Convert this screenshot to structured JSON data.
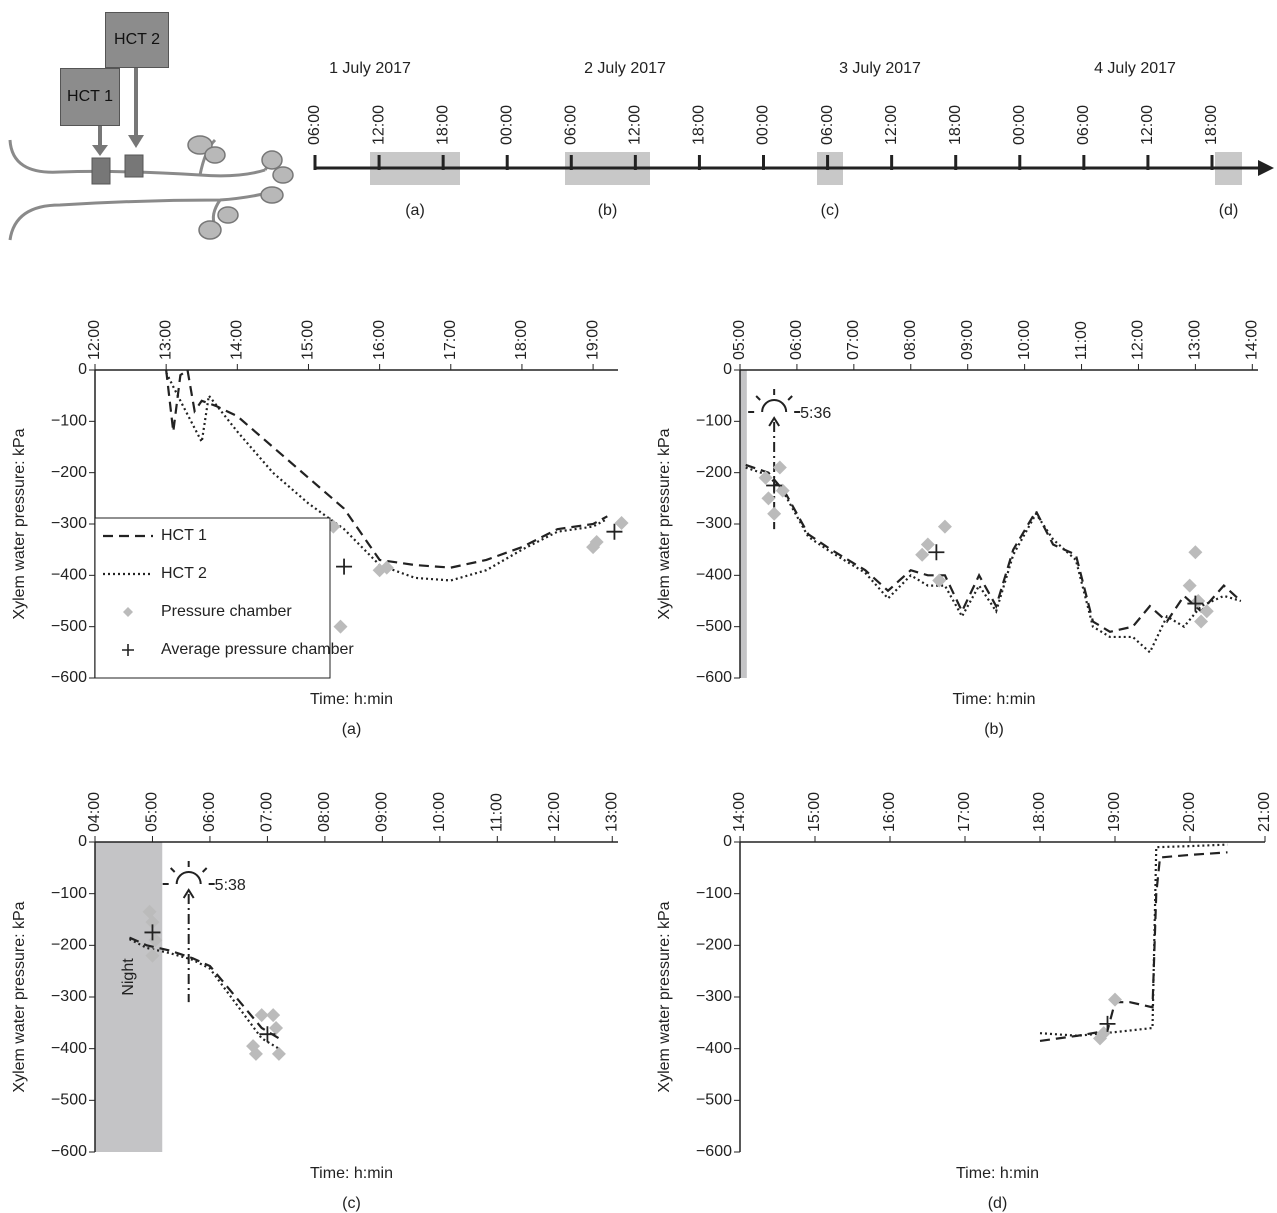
{
  "header": {
    "hct_labels": [
      "HCT 1",
      "HCT 2"
    ]
  },
  "timeline": {
    "dates": [
      "1 July 2017",
      "2 July 2017",
      "3 July 2017",
      "4 July 2017"
    ],
    "ticks": [
      "06:00",
      "12:00",
      "18:00",
      "00:00",
      "06:00",
      "12:00",
      "18:00",
      "00:00",
      "06:00",
      "12:00",
      "18:00",
      "00:00",
      "06:00",
      "12:00",
      "18:00"
    ],
    "windows": [
      "(a)",
      "(b)",
      "(c)",
      "(d)"
    ]
  },
  "chart_data": [
    {
      "type": "line",
      "caption": "(a)",
      "x_label": "Time: h:min",
      "y_label": "Xylem water pressure: kPa",
      "legend": "lower left",
      "xlim": [
        12,
        19.35
      ],
      "xticks": [
        {
          "value": 12,
          "label": "12:00"
        },
        {
          "value": 13,
          "label": "13:00"
        },
        {
          "value": 14,
          "label": "14:00"
        },
        {
          "value": 15,
          "label": "15:00"
        },
        {
          "value": 16,
          "label": "16:00"
        },
        {
          "value": 17,
          "label": "17:00"
        },
        {
          "value": 18,
          "label": "18:00"
        },
        {
          "value": 19,
          "label": "19:00"
        }
      ],
      "ylim": [
        -600,
        0
      ],
      "yticks": [
        0,
        {
          "value": -100,
          "label": "−100"
        },
        {
          "value": -200,
          "label": "−200"
        },
        {
          "value": -300,
          "label": "−300"
        },
        {
          "value": -400,
          "label": "−400"
        },
        {
          "value": -500,
          "label": "−500"
        },
        {
          "value": -600,
          "label": "−600"
        }
      ],
      "series": [
        {
          "name": "HCT 1",
          "style": "dashed",
          "color": "#222222",
          "x": [
            13.0,
            13.1,
            13.2,
            13.3,
            13.4,
            13.5,
            13.7,
            14,
            14.5,
            15,
            15.5,
            15.8,
            16,
            16.5,
            17,
            17.5,
            18,
            18.5,
            19,
            19.2
          ],
          "values": [
            0,
            -120,
            -10,
            0,
            -80,
            -60,
            -70,
            -90,
            -150,
            -210,
            -270,
            -330,
            -370,
            -380,
            -385,
            -370,
            -345,
            -310,
            -300,
            -285
          ]
        },
        {
          "name": "HCT 2",
          "style": "dotted",
          "color": "#222222",
          "x": [
            13.0,
            13.2,
            13.5,
            13.6,
            14,
            14.5,
            15,
            15.5,
            16,
            16.5,
            17,
            17.5,
            18,
            18.5,
            19,
            19.2
          ],
          "values": [
            -5,
            -60,
            -140,
            -50,
            -120,
            -200,
            -260,
            -310,
            -380,
            -405,
            -410,
            -390,
            -350,
            -315,
            -305,
            -290
          ]
        },
        {
          "name": "Pressure chamber",
          "style": "diamond",
          "color": "#bbbbbb",
          "x": [
            15.05,
            15.1,
            15.35,
            15.45,
            16.0,
            16.1,
            19.0,
            19.05,
            19.4
          ],
          "values": [
            -335,
            -378,
            -305,
            -500,
            -390,
            -385,
            -345,
            -335,
            -298
          ]
        },
        {
          "name": "Average pressure chamber",
          "style": "plus",
          "color": "#222222",
          "x": [
            15.5,
            19.3
          ],
          "values": [
            -383,
            -315
          ]
        }
      ]
    },
    {
      "type": "line",
      "caption": "(b)",
      "x_label": "Time: h:min",
      "y_label": "Xylem water pressure: kPa",
      "shaded": [
        5,
        5.12
      ],
      "sunrise_label": "5:36",
      "sunrise_x": 5.6,
      "xlim": [
        5,
        14.1
      ],
      "xticks": [
        {
          "value": 5,
          "label": "05:00"
        },
        {
          "value": 6,
          "label": "06:00"
        },
        {
          "value": 7,
          "label": "07:00"
        },
        {
          "value": 8,
          "label": "08:00"
        },
        {
          "value": 9,
          "label": "09:00"
        },
        {
          "value": 10,
          "label": "10:00"
        },
        {
          "value": 11,
          "label": "11:00"
        },
        {
          "value": 12,
          "label": "12:00"
        },
        {
          "value": 13,
          "label": "13:00"
        },
        {
          "value": 14,
          "label": "14:00"
        }
      ],
      "ylim": [
        -600,
        0
      ],
      "yticks": [
        0,
        {
          "value": -100,
          "label": "−100"
        },
        {
          "value": -200,
          "label": "−200"
        },
        {
          "value": -300,
          "label": "−300"
        },
        {
          "value": -400,
          "label": "−400"
        },
        {
          "value": -500,
          "label": "−500"
        },
        {
          "value": -600,
          "label": "−600"
        }
      ],
      "series": [
        {
          "name": "HCT 1",
          "style": "dashed",
          "color": "#222222",
          "x": [
            5.1,
            5.5,
            5.8,
            6.2,
            6.6,
            7.2,
            7.6,
            8.0,
            8.3,
            8.6,
            8.9,
            9.2,
            9.5,
            9.8,
            10.2,
            10.5,
            10.9,
            11.2,
            11.5,
            11.9,
            12.2,
            12.5,
            12.8,
            13.1,
            13.5,
            13.8
          ],
          "values": [
            -185,
            -200,
            -240,
            -320,
            -350,
            -390,
            -430,
            -390,
            -400,
            -400,
            -470,
            -400,
            -460,
            -350,
            -275,
            -340,
            -360,
            -490,
            -510,
            -500,
            -460,
            -490,
            -440,
            -470,
            -420,
            -450
          ]
        },
        {
          "name": "HCT 2",
          "style": "dotted",
          "color": "#222222",
          "x": [
            5.1,
            5.5,
            5.8,
            6.2,
            6.6,
            7.2,
            7.6,
            8.0,
            8.3,
            8.6,
            8.9,
            9.2,
            9.5,
            9.8,
            10.2,
            10.5,
            10.9,
            11.2,
            11.5,
            11.9,
            12.2,
            12.5,
            12.8,
            13.1,
            13.5,
            13.8
          ],
          "values": [
            -190,
            -205,
            -245,
            -325,
            -355,
            -395,
            -445,
            -400,
            -420,
            -420,
            -480,
            -420,
            -470,
            -360,
            -280,
            -330,
            -370,
            -500,
            -520,
            -520,
            -550,
            -480,
            -500,
            -460,
            -440,
            -450
          ]
        },
        {
          "name": "Pressure chamber",
          "style": "diamond",
          "color": "#bbbbbb",
          "x": [
            5.45,
            5.5,
            5.6,
            5.7,
            5.75,
            8.2,
            8.3,
            8.5,
            8.6,
            12.9,
            13.0,
            13.05,
            13.1,
            13.2
          ],
          "values": [
            -210,
            -250,
            -280,
            -190,
            -235,
            -360,
            -340,
            -410,
            -305,
            -420,
            -355,
            -450,
            -490,
            -470
          ]
        },
        {
          "name": "Average pressure chamber",
          "style": "plus",
          "color": "#222222",
          "x": [
            5.6,
            8.45,
            13.0
          ],
          "values": [
            -225,
            -355,
            -455
          ]
        }
      ]
    },
    {
      "type": "line",
      "caption": "(c)",
      "x_label": "Time: h:min",
      "y_label": "Xylem water pressure: kPa",
      "shaded": [
        4,
        5.17
      ],
      "shaded_label": "Night",
      "sunrise_label": "5:38",
      "sunrise_x": 5.63,
      "xlim": [
        4,
        13.1
      ],
      "xticks": [
        {
          "value": 4,
          "label": "04:00"
        },
        {
          "value": 5,
          "label": "05:00"
        },
        {
          "value": 6,
          "label": "06:00"
        },
        {
          "value": 7,
          "label": "07:00"
        },
        {
          "value": 8,
          "label": "08:00"
        },
        {
          "value": 9,
          "label": "09:00"
        },
        {
          "value": 10,
          "label": "10:00"
        },
        {
          "value": 11,
          "label": "11:00"
        },
        {
          "value": 12,
          "label": "12:00"
        },
        {
          "value": 13,
          "label": "13:00"
        }
      ],
      "ylim": [
        -600,
        0
      ],
      "yticks": [
        0,
        {
          "value": -100,
          "label": "−100"
        },
        {
          "value": -200,
          "label": "−200"
        },
        {
          "value": -300,
          "label": "−300"
        },
        {
          "value": -400,
          "label": "−400"
        },
        {
          "value": -500,
          "label": "−500"
        },
        {
          "value": -600,
          "label": "−600"
        }
      ],
      "series": [
        {
          "name": "HCT 1",
          "style": "dashed",
          "color": "#222222",
          "x": [
            4.6,
            4.9,
            5.3,
            5.7,
            6.0,
            6.3,
            6.6,
            6.9,
            7.2
          ],
          "values": [
            -185,
            -200,
            -210,
            -225,
            -240,
            -280,
            -320,
            -360,
            -380
          ]
        },
        {
          "name": "HCT 2",
          "style": "dotted",
          "color": "#222222",
          "x": [
            4.6,
            4.9,
            5.3,
            5.7,
            6.0,
            6.3,
            6.6,
            6.9,
            7.2
          ],
          "values": [
            -188,
            -205,
            -215,
            -228,
            -245,
            -290,
            -335,
            -380,
            -400
          ]
        },
        {
          "name": "Pressure chamber",
          "style": "diamond",
          "color": "#bbbbbb",
          "x": [
            4.95,
            5.0,
            5.05,
            5.0,
            6.75,
            6.8,
            6.9,
            7.1,
            7.15,
            7.2
          ],
          "values": [
            -135,
            -155,
            -190,
            -220,
            -395,
            -410,
            -335,
            -335,
            -360,
            -410
          ]
        },
        {
          "name": "Average pressure chamber",
          "style": "plus",
          "color": "#222222",
          "x": [
            5.0,
            7.0
          ],
          "values": [
            -175,
            -372
          ]
        }
      ]
    },
    {
      "type": "line",
      "caption": "(d)",
      "x_label": "Time: h:min",
      "y_label": "Xylem water pressure: kPa",
      "xlim": [
        14,
        21
      ],
      "xticks": [
        {
          "value": 14,
          "label": "14:00"
        },
        {
          "value": 15,
          "label": "15:00"
        },
        {
          "value": 16,
          "label": "16:00"
        },
        {
          "value": 17,
          "label": "17:00"
        },
        {
          "value": 18,
          "label": "18:00"
        },
        {
          "value": 19,
          "label": "19:00"
        },
        {
          "value": 20,
          "label": "20:00"
        },
        {
          "value": 21,
          "label": "21:00"
        }
      ],
      "ylim": [
        -600,
        0
      ],
      "yticks": [
        0,
        {
          "value": -100,
          "label": "−100"
        },
        {
          "value": -200,
          "label": "−200"
        },
        {
          "value": -300,
          "label": "−300"
        },
        {
          "value": -400,
          "label": "−400"
        },
        {
          "value": -500,
          "label": "−500"
        },
        {
          "value": -600,
          "label": "−600"
        }
      ],
      "series": [
        {
          "name": "HCT 1",
          "style": "dashed",
          "color": "#222222",
          "x": [
            18.0,
            18.5,
            18.9,
            19.0,
            19.2,
            19.5,
            19.55,
            19.6,
            20.0,
            20.5
          ],
          "values": [
            -385,
            -375,
            -365,
            -310,
            -310,
            -320,
            -100,
            -30,
            -25,
            -20
          ]
        },
        {
          "name": "HCT 2",
          "style": "dotted",
          "color": "#222222",
          "x": [
            18.0,
            18.5,
            19.0,
            19.5,
            19.55,
            20.0,
            20.5
          ],
          "values": [
            -370,
            -375,
            -368,
            -360,
            -10,
            -8,
            -5
          ]
        },
        {
          "name": "Pressure chamber",
          "style": "diamond",
          "color": "#bbbbbb",
          "x": [
            18.8,
            18.85,
            19.0
          ],
          "values": [
            -380,
            -370,
            -305
          ]
        },
        {
          "name": "Average pressure chamber",
          "style": "plus",
          "color": "#222222",
          "x": [
            18.9
          ],
          "values": [
            -352
          ]
        }
      ]
    }
  ]
}
